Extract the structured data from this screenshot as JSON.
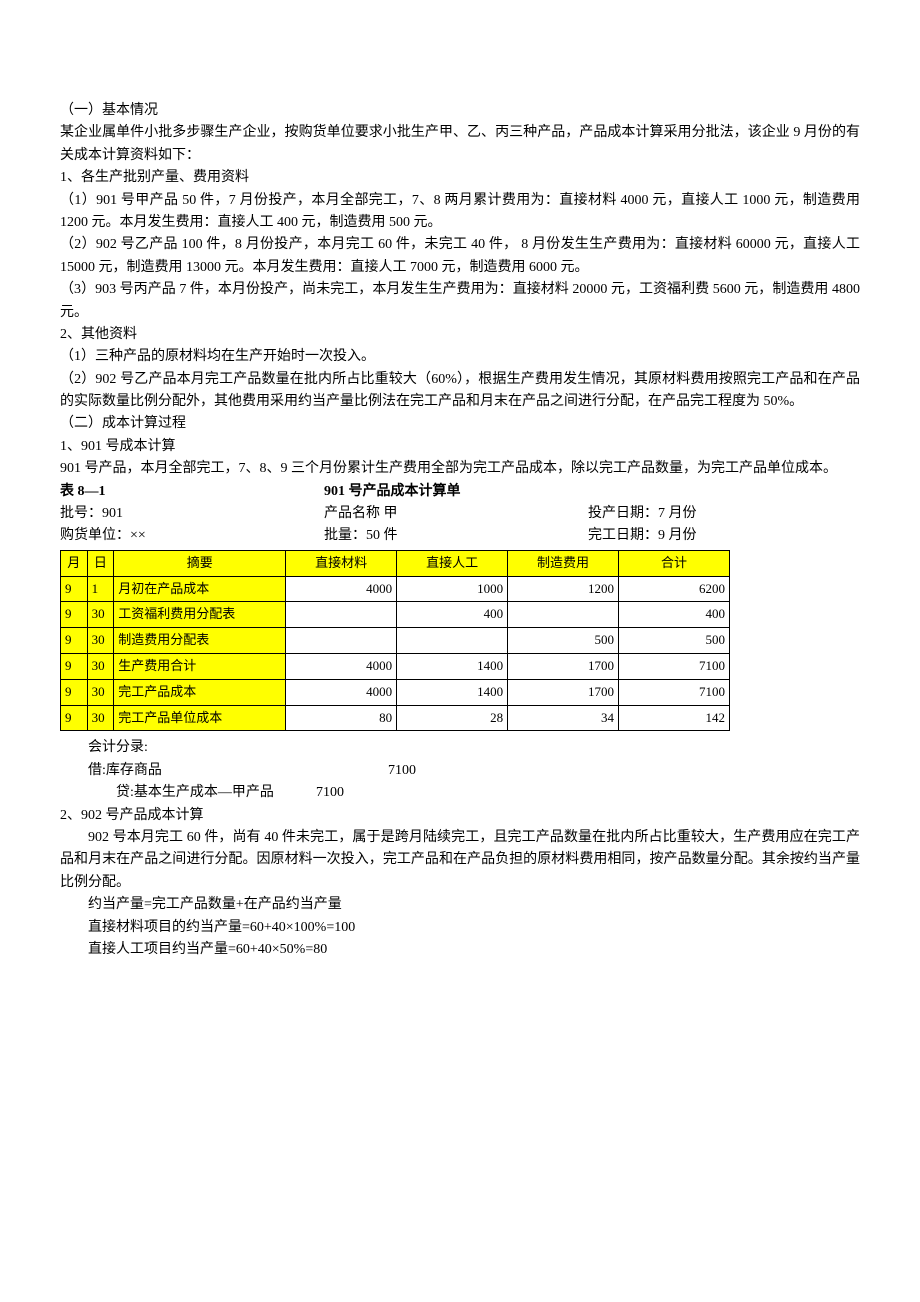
{
  "section1": {
    "heading": "（一）基本情况",
    "p1": "某企业属单件小批多步骤生产企业，按购货单位要求小批生产甲、乙、丙三种产品，产品成本计算采用分批法，该企业 9 月份的有关成本计算资料如下：",
    "p2": "1、各生产批别产量、费用资料",
    "p3": "（1）901 号甲产品 50 件，7 月份投产，本月全部完工，7、8 两月累计费用为：直接材料 4000 元，直接人工 1000 元，制造费用 1200 元。本月发生费用：直接人工 400 元，制造费用 500 元。",
    "p4": "（2）902 号乙产品 100 件，8 月份投产，本月完工 60 件，未完工 40 件，  8 月份发生生产费用为：直接材料 60000 元，直接人工 15000 元，制造费用 13000 元。本月发生费用：直接人工 7000 元，制造费用 6000 元。",
    "p5": "（3）903 号丙产品 7 件，本月份投产，尚未完工，本月发生生产费用为：直接材料 20000 元，工资福利费 5600 元，制造费用 4800 元。",
    "p6": "2、其他资料",
    "p7": "（1）三种产品的原材料均在生产开始时一次投入。",
    "p8": "（2）902 号乙产品本月完工产品数量在批内所占比重较大（60%），根据生产费用发生情况，其原材料费用按照完工产品和在产品的实际数量比例分配外，其他费用采用约当产量比例法在完工产品和月末在产品之间进行分配，在产品完工程度为 50%。"
  },
  "section2": {
    "heading": "（二）成本计算过程",
    "p1": "1、901 号成本计算",
    "p2": "901 号产品，本月全部完工，7、8、9 三个月份累计生产费用全部为完工产品成本，除以完工产品数量，为完工产品单位成本。"
  },
  "table1": {
    "caption_left": "表 8—1",
    "caption_center": "901 号产品成本计算单",
    "meta_row1": {
      "left": "批号：901",
      "center": "产品名称    甲",
      "right": "投产日期：7 月份"
    },
    "meta_row2": {
      "left": "购货单位：××",
      "center": "批量：50 件",
      "right": "完工日期：9 月份"
    },
    "columns": [
      "月",
      "日",
      "摘要",
      "直接材料",
      "直接人工",
      "制造费用",
      "合计"
    ],
    "rows": [
      {
        "m": "9",
        "d": "1",
        "desc": "月初在产品成本",
        "v": [
          "4000",
          "1000",
          "1200",
          "6200"
        ]
      },
      {
        "m": "9",
        "d": "30",
        "desc": "工资福利费用分配表",
        "v": [
          "",
          "400",
          "",
          "400"
        ]
      },
      {
        "m": "9",
        "d": "30",
        "desc": "制造费用分配表",
        "v": [
          "",
          "",
          "500",
          "500"
        ]
      },
      {
        "m": "9",
        "d": "30",
        "desc": "生产费用合计",
        "v": [
          "4000",
          "1400",
          "1700",
          "7100"
        ]
      },
      {
        "m": "9",
        "d": "30",
        "desc": "完工产品成本",
        "v": [
          "4000",
          "1400",
          "1700",
          "7100"
        ]
      },
      {
        "m": "9",
        "d": "30",
        "desc": "完工产品单位成本",
        "v": [
          "80",
          "28",
          "34",
          "142"
        ]
      }
    ],
    "highlight_color": "#ffff00",
    "border_color": "#000000"
  },
  "journal": {
    "title": "会计分录:",
    "debit_label": "借:库存商品",
    "debit_amount": "7100",
    "credit_label": "贷:基本生产成本—甲产品",
    "credit_amount": "7100"
  },
  "section3": {
    "p1": "2、902 号产品成本计算",
    "p2": "902 号本月完工 60 件，尚有 40 件未完工，属于是跨月陆续完工，且完工产品数量在批内所占比重较大，生产费用应在完工产品和月末在产品之间进行分配。因原材料一次投入，完工产品和在产品负担的原材料费用相同，按产品数量分配。其余按约当产量比例分配。",
    "p3": "约当产量=完工产品数量+在产品约当产量",
    "p4": "直接材料项目的约当产量=60+40×100%=100",
    "p5": "直接人工项目约当产量=60+40×50%=80"
  }
}
